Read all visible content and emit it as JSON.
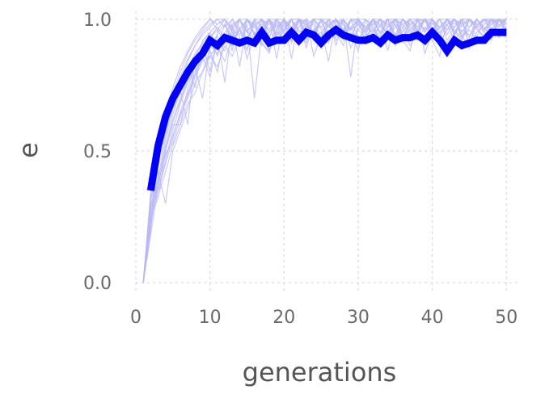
{
  "chart_data": {
    "type": "line",
    "title": "",
    "xlabel": "generations",
    "ylabel": "e",
    "xlim": [
      0,
      51.5
    ],
    "ylim": [
      -0.03,
      1.03
    ],
    "grid": true,
    "legend": "none",
    "x_ticks": [
      0,
      10,
      20,
      30,
      40,
      50
    ],
    "x_tick_labels": [
      "0",
      "10",
      "20",
      "30",
      "40",
      "50"
    ],
    "y_ticks": [
      0.0,
      0.5,
      1.0
    ],
    "y_tick_labels": [
      "0.0",
      "0.5",
      "1.0"
    ],
    "colors": {
      "mean": "#0000ff",
      "runs": "#b8b8f5",
      "grid": "#d9d9d9",
      "text": "#6a6a6a"
    },
    "mean_series": {
      "x": [
        2,
        3,
        4,
        5,
        6,
        7,
        8,
        9,
        10,
        11,
        12,
        13,
        14,
        15,
        16,
        17,
        18,
        19,
        20,
        21,
        22,
        23,
        24,
        25,
        26,
        27,
        28,
        29,
        30,
        31,
        32,
        33,
        34,
        35,
        36,
        37,
        38,
        39,
        40,
        41,
        42,
        43,
        44,
        45,
        46,
        47,
        48,
        49,
        50
      ],
      "y": [
        0.35,
        0.52,
        0.63,
        0.7,
        0.75,
        0.8,
        0.84,
        0.87,
        0.92,
        0.9,
        0.93,
        0.92,
        0.91,
        0.92,
        0.91,
        0.95,
        0.91,
        0.92,
        0.92,
        0.95,
        0.92,
        0.95,
        0.94,
        0.91,
        0.94,
        0.96,
        0.94,
        0.93,
        0.92,
        0.92,
        0.93,
        0.91,
        0.94,
        0.92,
        0.93,
        0.93,
        0.94,
        0.92,
        0.95,
        0.92,
        0.88,
        0.92,
        0.9,
        0.91,
        0.92,
        0.92,
        0.95,
        0.95,
        0.95
      ]
    },
    "runs": [
      [
        0.0,
        0.28,
        0.46,
        0.58,
        0.68,
        0.76,
        0.84,
        0.9,
        0.95,
        0.98,
        1.0,
        1.0,
        0.97,
        1.0,
        0.92,
        1.0,
        0.97,
        1.0,
        1.0,
        0.95,
        1.0,
        1.0,
        0.94,
        1.0,
        1.0,
        0.97,
        1.0,
        0.95,
        1.0,
        1.0,
        0.96,
        1.0,
        1.0,
        0.98,
        1.0,
        0.95,
        1.0,
        1.0,
        1.0,
        0.96,
        1.0,
        1.0,
        0.97,
        1.0,
        1.0,
        0.98,
        1.0,
        1.0,
        1.0,
        0.98
      ],
      [
        0.0,
        0.22,
        0.4,
        0.52,
        0.62,
        0.7,
        0.78,
        0.84,
        0.88,
        0.92,
        0.86,
        0.95,
        0.98,
        0.82,
        1.0,
        0.95,
        0.9,
        1.0,
        0.94,
        1.0,
        0.85,
        1.0,
        0.97,
        0.92,
        1.0,
        1.0,
        0.9,
        1.0,
        0.95,
        0.88,
        1.0,
        0.97,
        0.93,
        1.0,
        0.9,
        1.0,
        0.97,
        0.95,
        1.0,
        0.92,
        0.86,
        1.0,
        0.95,
        1.0,
        0.9,
        1.0,
        0.96,
        1.0,
        0.94,
        1.0
      ],
      [
        0.0,
        0.3,
        0.35,
        0.45,
        0.55,
        0.65,
        0.72,
        0.8,
        0.86,
        0.78,
        0.92,
        0.88,
        0.96,
        0.9,
        0.98,
        0.7,
        0.95,
        1.0,
        0.92,
        0.96,
        1.0,
        0.9,
        0.98,
        0.94,
        1.0,
        0.92,
        0.97,
        1.0,
        0.89,
        0.96,
        1.0,
        0.93,
        0.98,
        1.0,
        0.94,
        0.92,
        1.0,
        0.96,
        0.9,
        1.0,
        0.95,
        0.98,
        1.0,
        0.93,
        0.97,
        1.0,
        0.95,
        0.92,
        1.0,
        0.96
      ],
      [
        0.0,
        0.26,
        0.32,
        0.5,
        0.6,
        0.6,
        0.74,
        0.82,
        0.7,
        0.9,
        0.94,
        0.76,
        0.97,
        0.93,
        0.88,
        1.0,
        0.91,
        0.87,
        1.0,
        0.95,
        0.93,
        1.0,
        0.89,
        1.0,
        0.96,
        0.84,
        1.0,
        0.93,
        0.97,
        1.0,
        0.91,
        0.95,
        1.0,
        0.88,
        1.0,
        0.94,
        0.92,
        1.0,
        0.87,
        0.95,
        1.0,
        0.92,
        0.97,
        1.0,
        0.9,
        0.95,
        0.98,
        1.0,
        0.93,
        0.97
      ],
      [
        0.0,
        0.34,
        0.42,
        0.3,
        0.5,
        0.58,
        0.66,
        0.76,
        0.8,
        0.88,
        0.8,
        0.93,
        0.9,
        0.97,
        0.85,
        0.94,
        1.0,
        0.88,
        0.96,
        1.0,
        0.91,
        0.97,
        1.0,
        0.86,
        0.94,
        1.0,
        0.95,
        0.9,
        1.0,
        0.93,
        0.96,
        1.0,
        0.9,
        0.97,
        1.0,
        0.92,
        0.88,
        1.0,
        0.95,
        1.0,
        0.91,
        0.96,
        1.0,
        0.94,
        0.89,
        1.0,
        0.97,
        0.93,
        1.0,
        0.95
      ],
      [
        0.0,
        0.2,
        0.48,
        0.62,
        0.72,
        0.8,
        0.87,
        0.92,
        0.96,
        1.0,
        0.96,
        1.0,
        0.88,
        1.0,
        0.95,
        1.0,
        1.0,
        0.93,
        1.0,
        0.97,
        1.0,
        0.92,
        1.0,
        0.98,
        0.9,
        1.0,
        0.96,
        1.0,
        0.78,
        1.0,
        0.97,
        1.0,
        0.94,
        1.0,
        0.98,
        0.91,
        1.0,
        0.97,
        1.0,
        0.95,
        1.0,
        0.94,
        1.0,
        0.97,
        1.0,
        0.93,
        1.0,
        0.98,
        1.0,
        0.97
      ],
      [
        0.0,
        0.32,
        0.38,
        0.48,
        0.56,
        0.64,
        0.7,
        0.78,
        0.84,
        0.86,
        0.9,
        0.84,
        0.94,
        0.96,
        0.91,
        0.93,
        0.97,
        0.9,
        0.95,
        0.93,
        0.97,
        0.94,
        0.91,
        0.96,
        0.93,
        0.98,
        0.92,
        0.95,
        0.97,
        0.91,
        0.94,
        0.96,
        0.92,
        0.95,
        0.93,
        0.97,
        0.9,
        0.95,
        0.92,
        0.96,
        0.94,
        0.91,
        0.95,
        0.93,
        0.96,
        0.92,
        0.94,
        0.97,
        0.95,
        0.93
      ],
      [
        0.0,
        0.25,
        0.44,
        0.56,
        0.66,
        0.72,
        0.82,
        0.74,
        0.92,
        0.95,
        0.9,
        0.98,
        0.93,
        1.0,
        0.96,
        0.9,
        1.0,
        0.95,
        0.98,
        0.92,
        1.0,
        0.96,
        0.93,
        1.0,
        0.97,
        0.94,
        1.0,
        0.98,
        0.92,
        1.0,
        0.95,
        0.98,
        1.0,
        0.93,
        0.97,
        1.0,
        0.95,
        0.93,
        1.0,
        0.97,
        0.94,
        1.0,
        0.96,
        0.92,
        1.0,
        0.98,
        0.95,
        1.0,
        0.97,
        1.0
      ],
      [
        0.0,
        0.18,
        0.36,
        0.46,
        0.58,
        0.68,
        0.76,
        0.82,
        0.88,
        0.93,
        0.97,
        0.93,
        1.0,
        0.96,
        1.0,
        0.94,
        0.98,
        1.0,
        0.85,
        1.0,
        0.96,
        0.99,
        1.0,
        0.94,
        1.0,
        0.97,
        1.0,
        0.92,
        1.0,
        0.98,
        0.95,
        1.0,
        0.97,
        1.0,
        0.93,
        1.0,
        0.98,
        1.0,
        0.95,
        1.0,
        0.97,
        1.0,
        0.94,
        1.0,
        0.97,
        1.0,
        0.96,
        1.0,
        0.98,
        1.0
      ],
      [
        0.0,
        0.27,
        0.4,
        0.54,
        0.64,
        0.73,
        0.6,
        0.86,
        0.91,
        0.95,
        0.98,
        1.0,
        0.95,
        0.9,
        1.0,
        0.97,
        0.93,
        1.0,
        0.96,
        1.0,
        0.92,
        1.0,
        0.98,
        0.95,
        1.0,
        0.93,
        0.97,
        1.0,
        0.96,
        1.0,
        0.91,
        1.0,
        0.97,
        0.95,
        1.0,
        0.98,
        0.94,
        1.0,
        0.96,
        1.0,
        0.93,
        0.98,
        1.0,
        0.95,
        1.0,
        0.97,
        1.0,
        0.94,
        1.0,
        0.98
      ],
      [
        0.0,
        0.24,
        0.46,
        0.6,
        0.7,
        0.78,
        0.85,
        0.9,
        0.94,
        0.97,
        1.0,
        0.97,
        1.0,
        0.94,
        1.0,
        0.98,
        1.0,
        0.96,
        1.0,
        1.0,
        0.97,
        1.0,
        0.95,
        1.0,
        1.0,
        0.98,
        1.0,
        0.96,
        1.0,
        1.0,
        0.97,
        1.0,
        0.95,
        1.0,
        1.0,
        0.98,
        1.0,
        0.97,
        1.0,
        1.0,
        0.96,
        1.0,
        0.98,
        1.0,
        1.0,
        0.97,
        1.0,
        0.99,
        1.0,
        1.0
      ],
      [
        0.0,
        0.29,
        0.33,
        0.42,
        0.52,
        0.6,
        0.68,
        0.72,
        0.8,
        0.86,
        0.82,
        0.9,
        0.86,
        0.93,
        0.89,
        0.95,
        0.91,
        0.88,
        0.96,
        0.92,
        0.94,
        0.9,
        0.97,
        0.93,
        0.95,
        0.91,
        0.98,
        0.94,
        0.92,
        0.96,
        0.93,
        0.97,
        0.91,
        0.95,
        0.98,
        0.93,
        0.96,
        0.92,
        0.97,
        0.94,
        0.95,
        0.98,
        0.92,
        0.96,
        0.94,
        0.97,
        0.93,
        0.95,
        0.98,
        0.96
      ],
      [
        0.0,
        0.31,
        0.47,
        0.57,
        0.67,
        0.74,
        0.81,
        0.87,
        0.91,
        0.8,
        0.95,
        0.98,
        0.92,
        0.96,
        1.0,
        0.94,
        0.97,
        1.0,
        0.93,
        0.98,
        1.0,
        0.95,
        0.97,
        1.0,
        0.92,
        0.98,
        1.0,
        0.96,
        0.93,
        1.0,
        0.97,
        0.95,
        1.0,
        0.98,
        0.94,
        1.0,
        0.96,
        0.99,
        1.0,
        0.95,
        0.97,
        1.0,
        0.94,
        0.98,
        1.0,
        0.96,
        0.93,
        1.0,
        0.97,
        1.0
      ],
      [
        0.0,
        0.23,
        0.37,
        0.51,
        0.61,
        0.69,
        0.77,
        0.83,
        0.89,
        0.93,
        0.96,
        0.91,
        0.98,
        1.0,
        0.95,
        0.99,
        0.94,
        1.0,
        0.97,
        1.0,
        0.95,
        1.0,
        0.99,
        0.93,
        1.0,
        0.97,
        1.0,
        0.95,
        0.99,
        1.0,
        0.96,
        1.0,
        0.98,
        0.94,
        1.0,
        0.97,
        1.0,
        0.95,
        1.0,
        0.98,
        1.0,
        0.96,
        1.0,
        0.93,
        1.0,
        0.98,
        1.0,
        0.96,
        1.0,
        0.99
      ],
      [
        0.0,
        0.33,
        0.5,
        0.64,
        0.74,
        0.82,
        0.88,
        0.93,
        0.97,
        1.0,
        0.98,
        1.0,
        0.96,
        1.0,
        1.0,
        0.97,
        1.0,
        0.98,
        1.0,
        0.96,
        1.0,
        1.0,
        0.98,
        1.0,
        0.97,
        1.0,
        0.99,
        1.0,
        0.96,
        1.0,
        1.0,
        0.98,
        1.0,
        0.97,
        1.0,
        1.0,
        0.98,
        1.0,
        0.99,
        1.0,
        0.97,
        1.0,
        1.0,
        0.98,
        1.0,
        0.97,
        1.0,
        1.0,
        0.99,
        1.0
      ],
      [
        0.0,
        0.21,
        0.39,
        0.49,
        0.53,
        0.63,
        0.71,
        0.79,
        0.85,
        0.9,
        0.87,
        0.94,
        0.9,
        0.96,
        0.92,
        0.98,
        0.93,
        0.95,
        0.99,
        0.94,
        0.97,
        1.0,
        0.92,
        0.96,
        0.99,
        0.95,
        0.93,
        1.0,
        0.96,
        0.98,
        0.94,
        1.0,
        0.95,
        0.97,
        1.0,
        0.93,
        0.98,
        0.96,
        1.0,
        0.94,
        0.97,
        1.0,
        0.95,
        0.99,
        0.93,
        1.0,
        0.96,
        0.98,
        1.0,
        0.95
      ]
    ]
  }
}
